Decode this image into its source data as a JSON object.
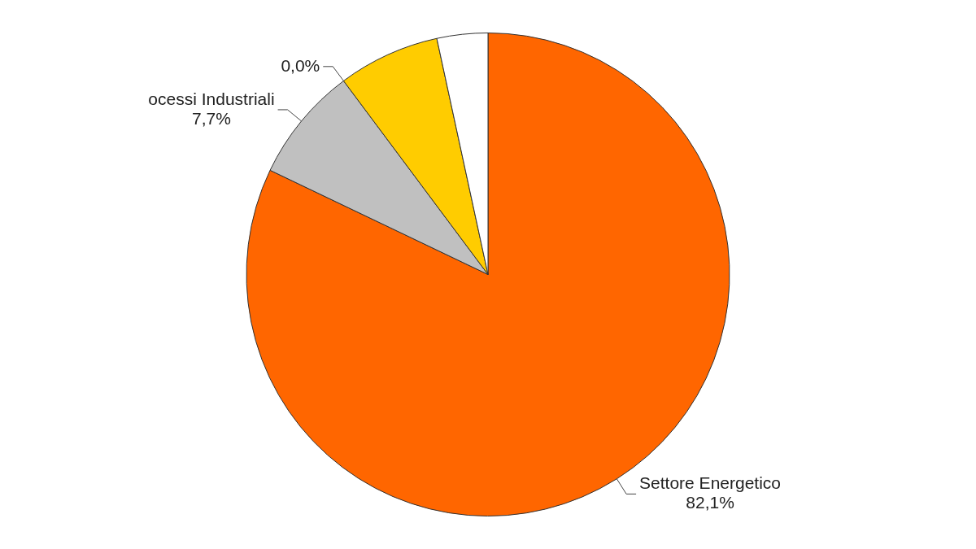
{
  "chart_data": {
    "type": "pie",
    "categories": [
      "Settore Energetico",
      "ocessi Industriali",
      null,
      null,
      null
    ],
    "values": [
      82.1,
      7.7,
      0.0,
      6.8,
      3.4
    ],
    "value_labels": [
      "82,1%",
      "7,7%",
      "0,0%",
      null,
      null
    ],
    "colors": [
      "#ff6600",
      "#c0c0c0",
      "#ffffff",
      "#ffcc00",
      "#ffffff"
    ],
    "legend": false
  }
}
